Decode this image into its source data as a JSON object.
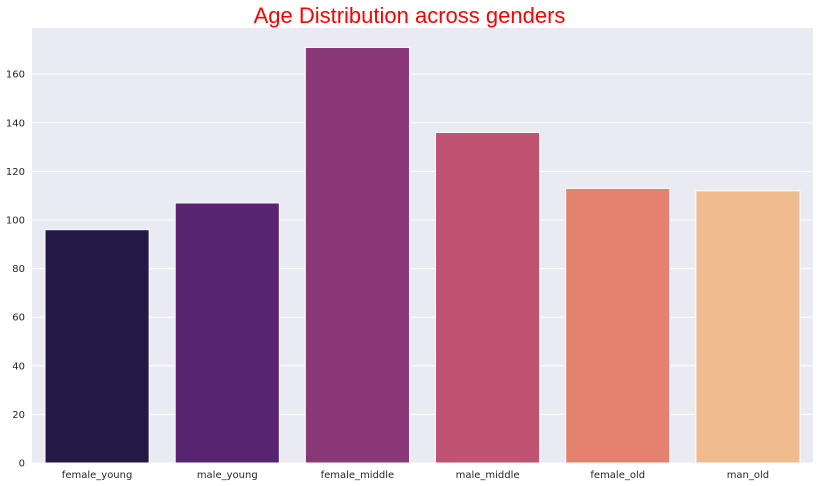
{
  "chart_data": {
    "type": "bar",
    "title": "Age Distribution across genders",
    "xlabel": "",
    "ylabel": "",
    "categories": [
      "female_young",
      "male_young",
      "female_middle",
      "male_middle",
      "female_old",
      "man_old"
    ],
    "values": [
      96,
      107,
      171,
      136,
      113,
      112
    ],
    "bar_colors": [
      "#231846",
      "#582370",
      "#8a3777",
      "#c05272",
      "#e5816f",
      "#f0bc8f"
    ],
    "ylim": [
      0,
      179
    ],
    "yticks": [
      0,
      20,
      40,
      60,
      80,
      100,
      120,
      140,
      160
    ],
    "grid": true,
    "legend": "none",
    "colors": {
      "title": "#ff0000",
      "plot_background": "#eaeaf2",
      "grid": "#ffffff"
    }
  }
}
